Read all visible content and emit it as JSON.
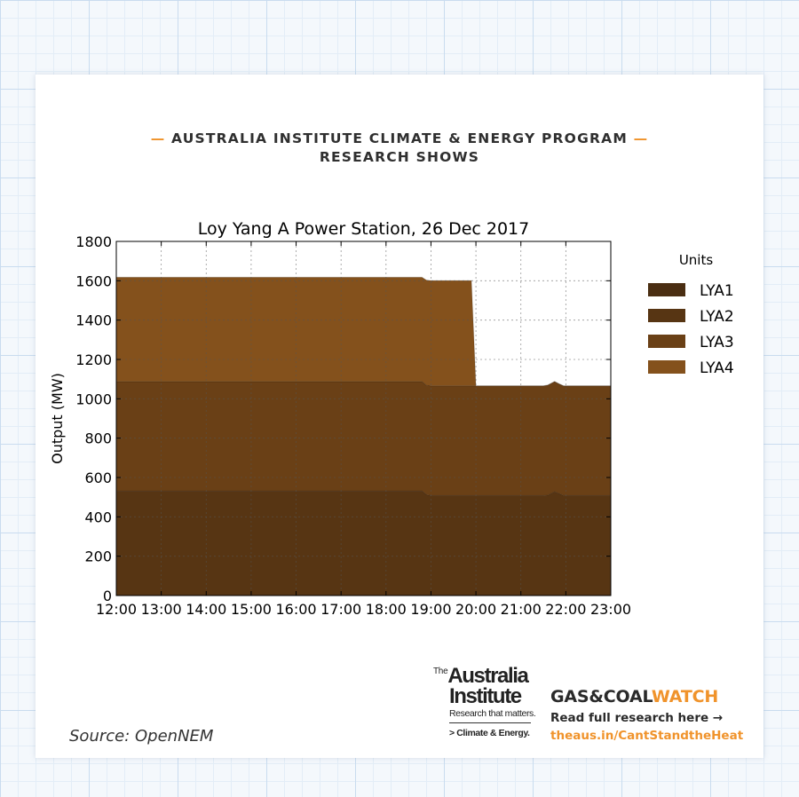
{
  "header": {
    "line1": "AUSTRALIA INSTITUTE CLIMATE & ENERGY PROGRAM",
    "line2": "RESEARCH SHOWS",
    "dash": "—"
  },
  "colors": {
    "accent": "#f0932b",
    "LYA1": "#4a2e12",
    "LYA2": "#573513",
    "LYA3": "#6a4016",
    "LYA4": "#84511c"
  },
  "chart_data": {
    "type": "area",
    "stacked": true,
    "title": "Loy Yang A Power Station, 26 Dec 2017",
    "xlabel": "",
    "ylabel": "Output (MW)",
    "ylim": [
      0,
      1800
    ],
    "yticks": [
      0,
      200,
      400,
      600,
      800,
      1000,
      1200,
      1400,
      1600,
      1800
    ],
    "xlim": [
      12,
      23
    ],
    "xtick_labels": [
      "12:00",
      "13:00",
      "14:00",
      "15:00",
      "16:00",
      "17:00",
      "18:00",
      "19:00",
      "20:00",
      "21:00",
      "22:00",
      "23:00"
    ],
    "grid": true,
    "legend": {
      "title": "Units",
      "position": "right"
    },
    "x": [
      12,
      18.8,
      18.9,
      19.0,
      19.9,
      20.0,
      21.5,
      21.6,
      21.75,
      21.85,
      21.95,
      23.0
    ],
    "series": [
      {
        "name": "LYA1",
        "values": [
          0,
          0,
          0,
          0,
          0,
          0,
          0,
          0,
          0,
          0,
          0,
          0
        ]
      },
      {
        "name": "LYA2",
        "values": [
          532,
          532,
          512,
          508,
          508,
          508,
          508,
          510,
          528,
          518,
          508,
          508
        ]
      },
      {
        "name": "LYA3",
        "values": [
          556,
          556,
          556,
          558,
          558,
          558,
          558,
          560,
          560,
          558,
          558,
          558
        ]
      },
      {
        "name": "LYA4",
        "values": [
          530,
          530,
          535,
          535,
          535,
          0,
          0,
          0,
          0,
          0,
          0,
          0
        ]
      }
    ]
  },
  "source": "Source: OpenNEM",
  "logo": {
    "the": "The",
    "australia": "Australia",
    "institute": "Institute",
    "tagline": "Research that matters.",
    "sub": "> Climate & Energy."
  },
  "gcw": {
    "title_a": "GAS&COAL",
    "title_b": "WATCH",
    "read": "Read full research here →",
    "url": "theaus.in/CantStandtheHeat"
  }
}
